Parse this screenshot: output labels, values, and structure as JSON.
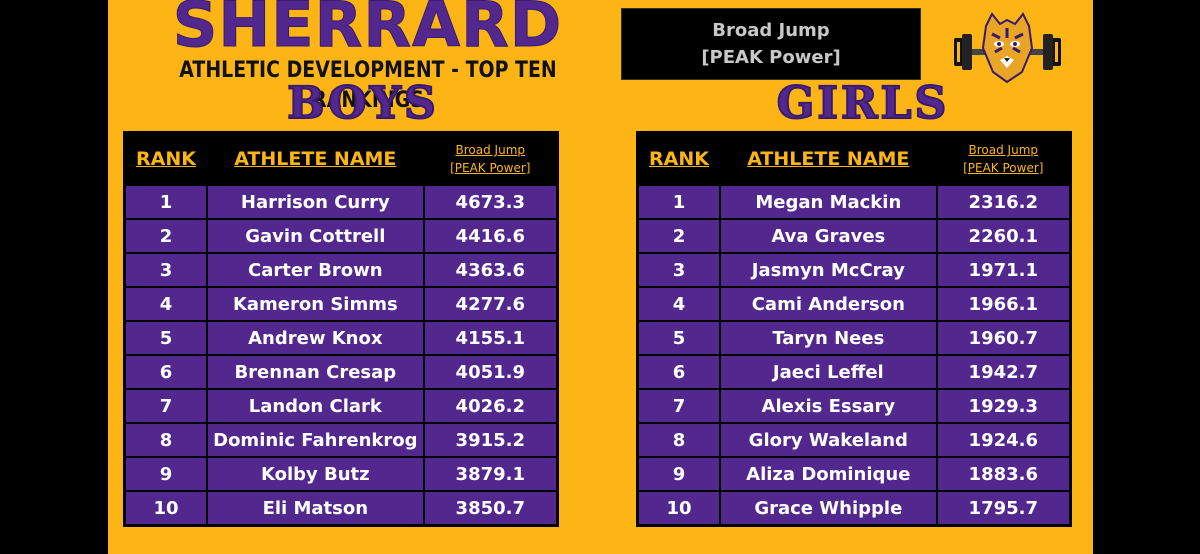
{
  "header": {
    "school": "SHERRARD",
    "subtitle": "ATHLETIC DEVELOPMENT - TOP TEN RANKINGS",
    "event_line1": "Broad Jump",
    "event_line2": "[PEAK Power]"
  },
  "boys": {
    "heading": "BOYS",
    "columns": {
      "rank": "RANK",
      "name": "ATHLETE NAME",
      "metric_line1": "Broad Jump",
      "metric_line2": "[PEAK Power]"
    },
    "rows": [
      {
        "rank": "1",
        "name": "Harrison Curry",
        "value": "4673.3"
      },
      {
        "rank": "2",
        "name": "Gavin Cottrell",
        "value": "4416.6"
      },
      {
        "rank": "3",
        "name": "Carter Brown",
        "value": "4363.6"
      },
      {
        "rank": "4",
        "name": "Kameron Simms",
        "value": "4277.6"
      },
      {
        "rank": "5",
        "name": "Andrew Knox",
        "value": "4155.1"
      },
      {
        "rank": "6",
        "name": "Brennan Cresap",
        "value": "4051.9"
      },
      {
        "rank": "7",
        "name": "Landon Clark",
        "value": "4026.2"
      },
      {
        "rank": "8",
        "name": "Dominic Fahrenkrog",
        "value": "3915.2"
      },
      {
        "rank": "9",
        "name": "Kolby Butz",
        "value": "3879.1"
      },
      {
        "rank": "10",
        "name": "Eli Matson",
        "value": "3850.7"
      }
    ]
  },
  "girls": {
    "heading": "GIRLS",
    "columns": {
      "rank": "RANK",
      "name": "ATHLETE NAME",
      "metric_line1": "Broad Jump",
      "metric_line2": "[PEAK Power]"
    },
    "rows": [
      {
        "rank": "1",
        "name": "Megan Mackin",
        "value": "2316.2"
      },
      {
        "rank": "2",
        "name": "Ava Graves",
        "value": "2260.1"
      },
      {
        "rank": "3",
        "name": "Jasmyn McCray",
        "value": "1971.1"
      },
      {
        "rank": "4",
        "name": "Cami Anderson",
        "value": "1966.1"
      },
      {
        "rank": "5",
        "name": "Taryn Nees",
        "value": "1960.7"
      },
      {
        "rank": "6",
        "name": "Jaeci Leffel",
        "value": "1942.7"
      },
      {
        "rank": "7",
        "name": "Alexis Essary",
        "value": "1929.3"
      },
      {
        "rank": "8",
        "name": "Glory Wakeland",
        "value": "1924.6"
      },
      {
        "rank": "9",
        "name": "Aliza Dominique",
        "value": "1883.6"
      },
      {
        "rank": "10",
        "name": "Grace Whipple",
        "value": "1795.7"
      }
    ]
  },
  "logo": {
    "icon": "tiger-dumbbell-icon"
  },
  "colors": {
    "gold": "#fcb514",
    "purple": "#52288f",
    "black": "#000000"
  }
}
